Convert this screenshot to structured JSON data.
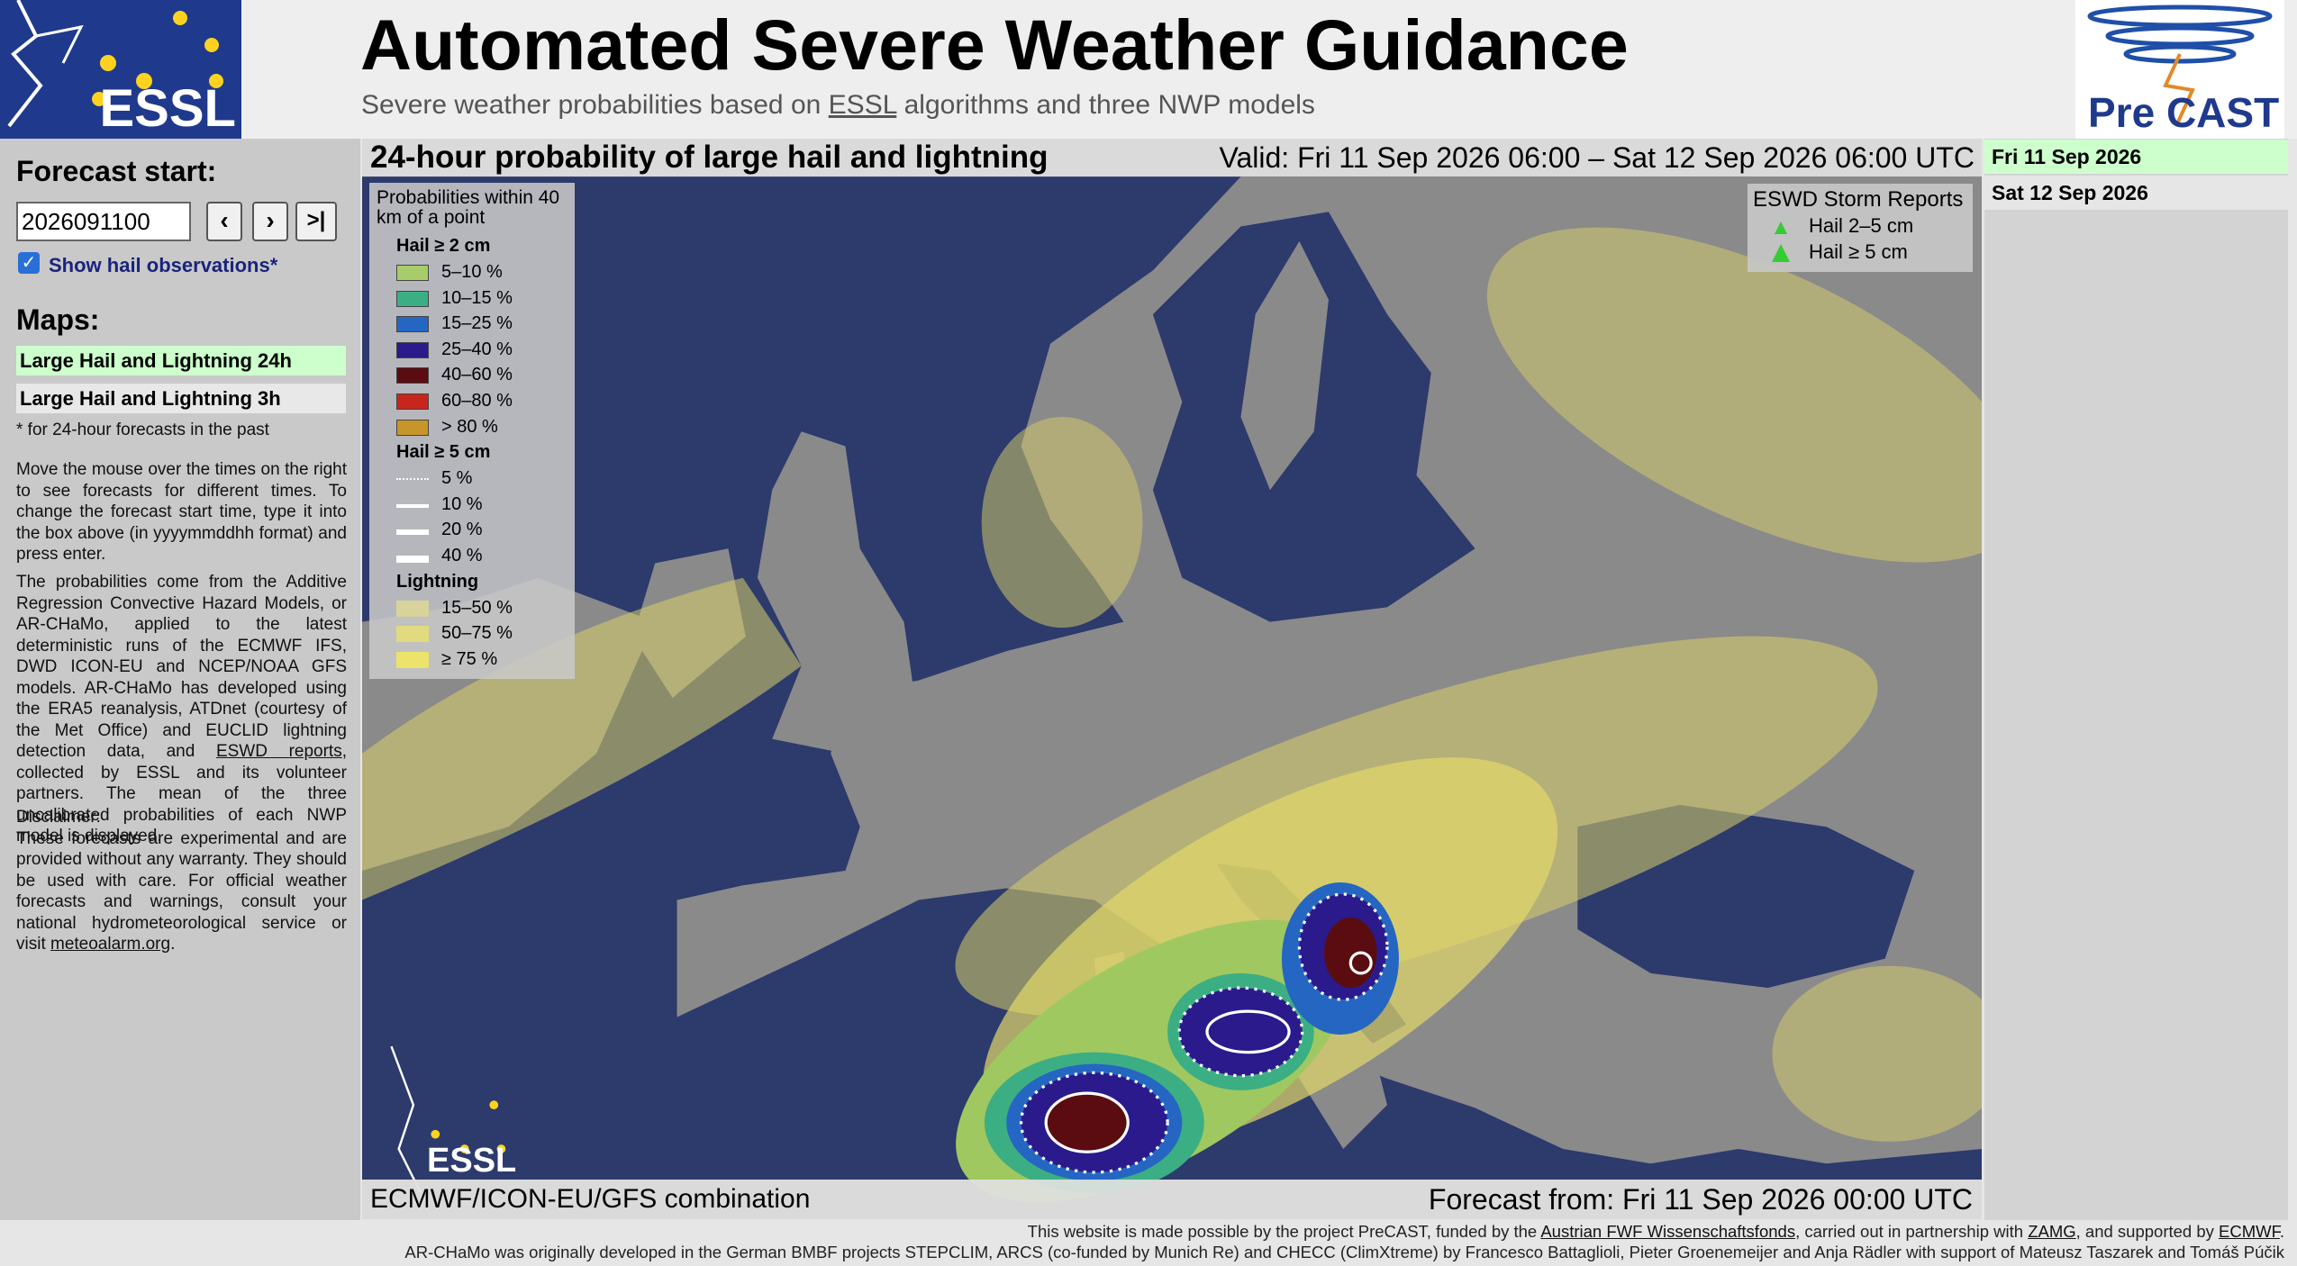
{
  "header": {
    "logo_left": "ESSL",
    "title": "Automated Severe Weather Guidance",
    "subtitle": {
      "before": "Severe weather probabilities based on ",
      "link": "ESSL",
      "after": " algorithms and three NWP models"
    },
    "logo_right": {
      "pre": "Pre",
      "cast": "CAST"
    }
  },
  "sidebar": {
    "forecast_start_label": "Forecast start:",
    "forecast_start_value": "2026091100",
    "buttons": [
      "‹",
      "›",
      ">|"
    ],
    "checkbox_label": "Show hail observations*",
    "maps_label": "Maps:",
    "maps": [
      "Large Hail and Lightning 24h",
      "Large Hail and Lightning 3h"
    ],
    "note": "* for 24-hour forecasts in the past",
    "paragraph1": "Move the mouse over the times on the right to see forecasts for different times. To change the forecast start time, type it into the box above (in yyyymmddhh format) and press enter.",
    "paragraph2": {
      "before": "The probabilities come from the Additive Regression Convective Hazard Models, or AR-CHaMo, applied to the latest deterministic runs of the ECMWF IFS, DWD ICON-EU and NCEP/NOAA GFS models. AR-CHaMo has developed using the ERA5 reanalysis, ATDnet (courtesy of the Met Office) and EUCLID lightning detection data, and ",
      "link": "ESWD reports",
      "after": ", collected by ESSL and its volunteer partners. The mean of the three uncalibrated probabilities of each NWP model is displayed."
    },
    "disclaimer": {
      "label": "Disclaimer:",
      "before": "These forecasts are experimental and are provided without any warranty. They should be used with care. For official weather forecasts and warnings, consult your national hydrometeorological service or visit ",
      "link": "meteoalarm.org",
      "after": "."
    }
  },
  "map": {
    "title": "24-hour probability of large hail and lightning",
    "valid": "Valid: Fri 11 Sep 2026 06:00 – Sat 12 Sep 2026 06:00 UTC",
    "legend": {
      "heading": "Probabilities within 40 km of a point",
      "hail2_title": "Hail ≥ 2 cm",
      "hail2": [
        "5–10 %",
        "10–15 %",
        "15–25 %",
        "25–40 %",
        "40–60 %",
        "60–80 %",
        "> 80 %"
      ],
      "hail5_title": "Hail ≥ 5 cm",
      "hail5": [
        "5 %",
        "10 %",
        "20 %",
        "40 %"
      ],
      "lightning_title": "Lightning",
      "lightning": [
        "15–50 %",
        "50–75 %",
        "≥ 75 %"
      ]
    },
    "eswd": {
      "title": "ESWD Storm Reports",
      "items": [
        "Hail 2–5 cm",
        "Hail ≥ 5 cm"
      ]
    },
    "watermark": "ESSL",
    "models": "ECMWF/ICON-EU/GFS combination",
    "forecast_from": "Forecast from: Fri 11 Sep 2026 00:00 UTC"
  },
  "dates": [
    "Fri 11 Sep 2026",
    "Sat 12 Sep 2026"
  ],
  "footer": {
    "line1": {
      "a": "This website is made possible by the project PreCAST, funded by the ",
      "link1": "Austrian FWF Wissenschaftsfonds",
      "b": ", carried out in partnership with ",
      "link2": "ZAMG",
      "c": ", and supported by ",
      "link3": "ECMWF",
      "d": "."
    },
    "line2": "AR-CHaMo was originally developed in the German BMBF projects STEPCLIM, ARCS (co-funded by Munich Re) and CHECC (ClimXtreme) by Francesco Battaglioli, Pieter Groenemeijer and Anja Rädler with support of Mateusz Taszarek and Tomáš Púčik"
  }
}
